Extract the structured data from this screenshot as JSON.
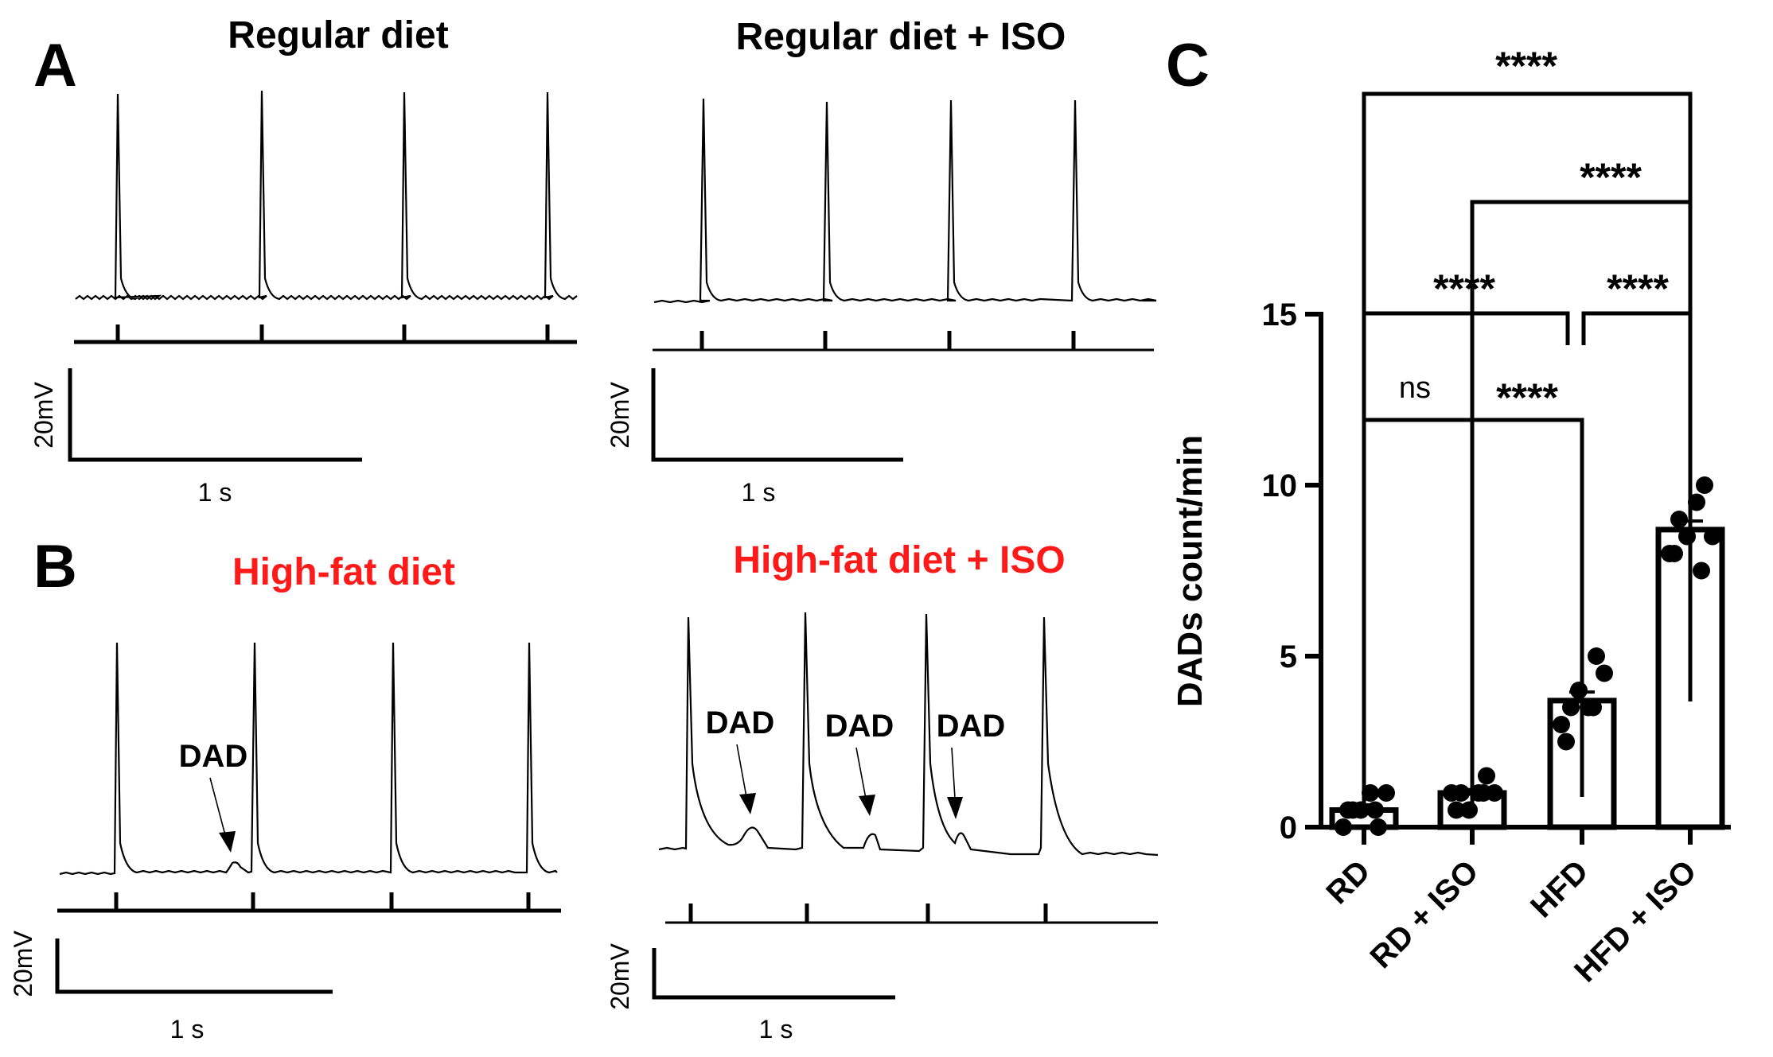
{
  "panels": {
    "A": {
      "letter": "A",
      "left_title": "Regular diet",
      "right_title": "Regular diet + ISO"
    },
    "B": {
      "letter": "B",
      "left_title": "High-fat diet",
      "right_title": "High-fat diet + ISO",
      "title_color": "#ff1a1a",
      "dad_label": "DAD"
    },
    "scale_bar": {
      "voltage_label": "20mV",
      "time_label": "1 s"
    }
  },
  "chart_data": {
    "type": "bar",
    "panel_letter": "C",
    "categories": [
      "RD",
      "RD + ISO",
      "HFD",
      "HFD + ISO"
    ],
    "values": [
      0.5,
      1.0,
      3.7,
      8.7
    ],
    "errors": [
      0.15,
      0.1,
      0.25,
      0.25
    ],
    "points": [
      [
        0.0,
        0.5,
        0.5,
        1.0,
        0.0,
        1.0,
        0.5,
        0.5
      ],
      [
        1.0,
        1.0,
        0.5,
        1.0,
        1.5,
        1.0,
        0.5,
        1.0
      ],
      [
        3.0,
        3.5,
        4.0,
        3.5,
        5.0,
        4.5,
        2.5,
        3.5
      ],
      [
        8.0,
        9.0,
        8.5,
        9.5,
        10.0,
        8.5,
        8.0,
        7.5
      ]
    ],
    "ylabel": "DADs count/min",
    "xlabel": "",
    "ylim": [
      0,
      15
    ],
    "yticks": [
      0,
      5,
      10,
      15
    ],
    "significance": [
      {
        "from": 0,
        "to": 1,
        "label": "ns"
      },
      {
        "from": 1,
        "to": 2,
        "label": "****"
      },
      {
        "from": 0,
        "to": 2,
        "label": "****"
      },
      {
        "from": 2,
        "to": 3,
        "label": "****"
      },
      {
        "from": 1,
        "to": 3,
        "label": "****"
      },
      {
        "from": 0,
        "to": 3,
        "label": "****"
      }
    ]
  }
}
